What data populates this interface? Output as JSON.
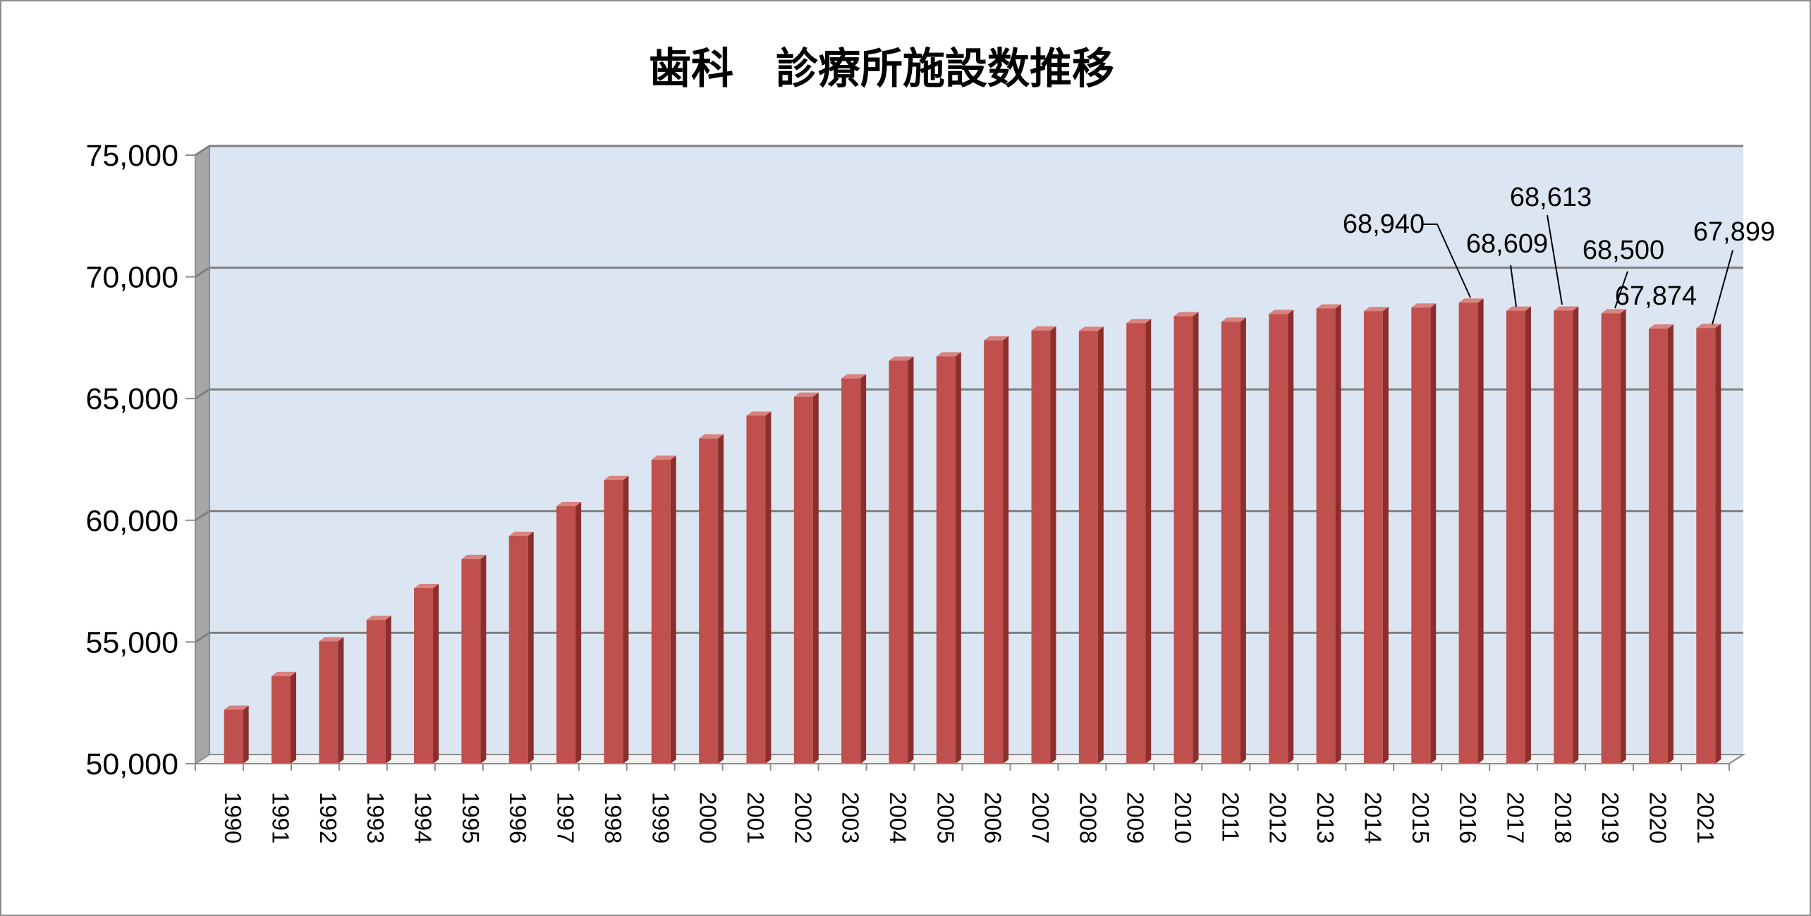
{
  "chart_data": {
    "type": "bar",
    "title": "歯科　診療所施設数推移",
    "xlabel": "",
    "ylabel": "",
    "ylim": [
      50000,
      75000
    ],
    "yticks": [
      50000,
      55000,
      60000,
      65000,
      70000,
      75000
    ],
    "ytick_labels": [
      "50,000",
      "55,000",
      "60,000",
      "65,000",
      "70,000",
      "75,000"
    ],
    "grid": true,
    "legend": "none",
    "categories": [
      "1990",
      "1991",
      "1992",
      "1993",
      "1994",
      "1995",
      "1996",
      "1997",
      "1998",
      "1999",
      "2000",
      "2001",
      "2002",
      "2003",
      "2004",
      "2005",
      "2006",
      "2007",
      "2008",
      "2009",
      "2010",
      "2011",
      "2012",
      "2013",
      "2014",
      "2015",
      "2016",
      "2017",
      "2018",
      "2019",
      "2020",
      "2021"
    ],
    "values": [
      52216,
      53598,
      55025,
      55906,
      57213,
      58407,
      59357,
      60579,
      61651,
      62484,
      63361,
      64297,
      65073,
      65828,
      66557,
      66732,
      67392,
      67798,
      67779,
      68097,
      68384,
      68156,
      68474,
      68701,
      68592,
      68737,
      68940,
      68609,
      68613,
      68500,
      67874,
      67899
    ],
    "data_labels": [
      {
        "index": 26,
        "text": "68,940"
      },
      {
        "index": 27,
        "text": "68,609"
      },
      {
        "index": 28,
        "text": "68,613"
      },
      {
        "index": 29,
        "text": "68,500"
      },
      {
        "index": 30,
        "text": "67,874"
      },
      {
        "index": 31,
        "text": "67,899"
      }
    ],
    "colors": {
      "bar_front": "#C0504D",
      "bar_side": "#8B2F2C",
      "bar_top": "#D98380",
      "plot_back": "#DCE6F2",
      "plot_wall": "#A6A6A6",
      "gridline": "#7F7F7F"
    }
  }
}
